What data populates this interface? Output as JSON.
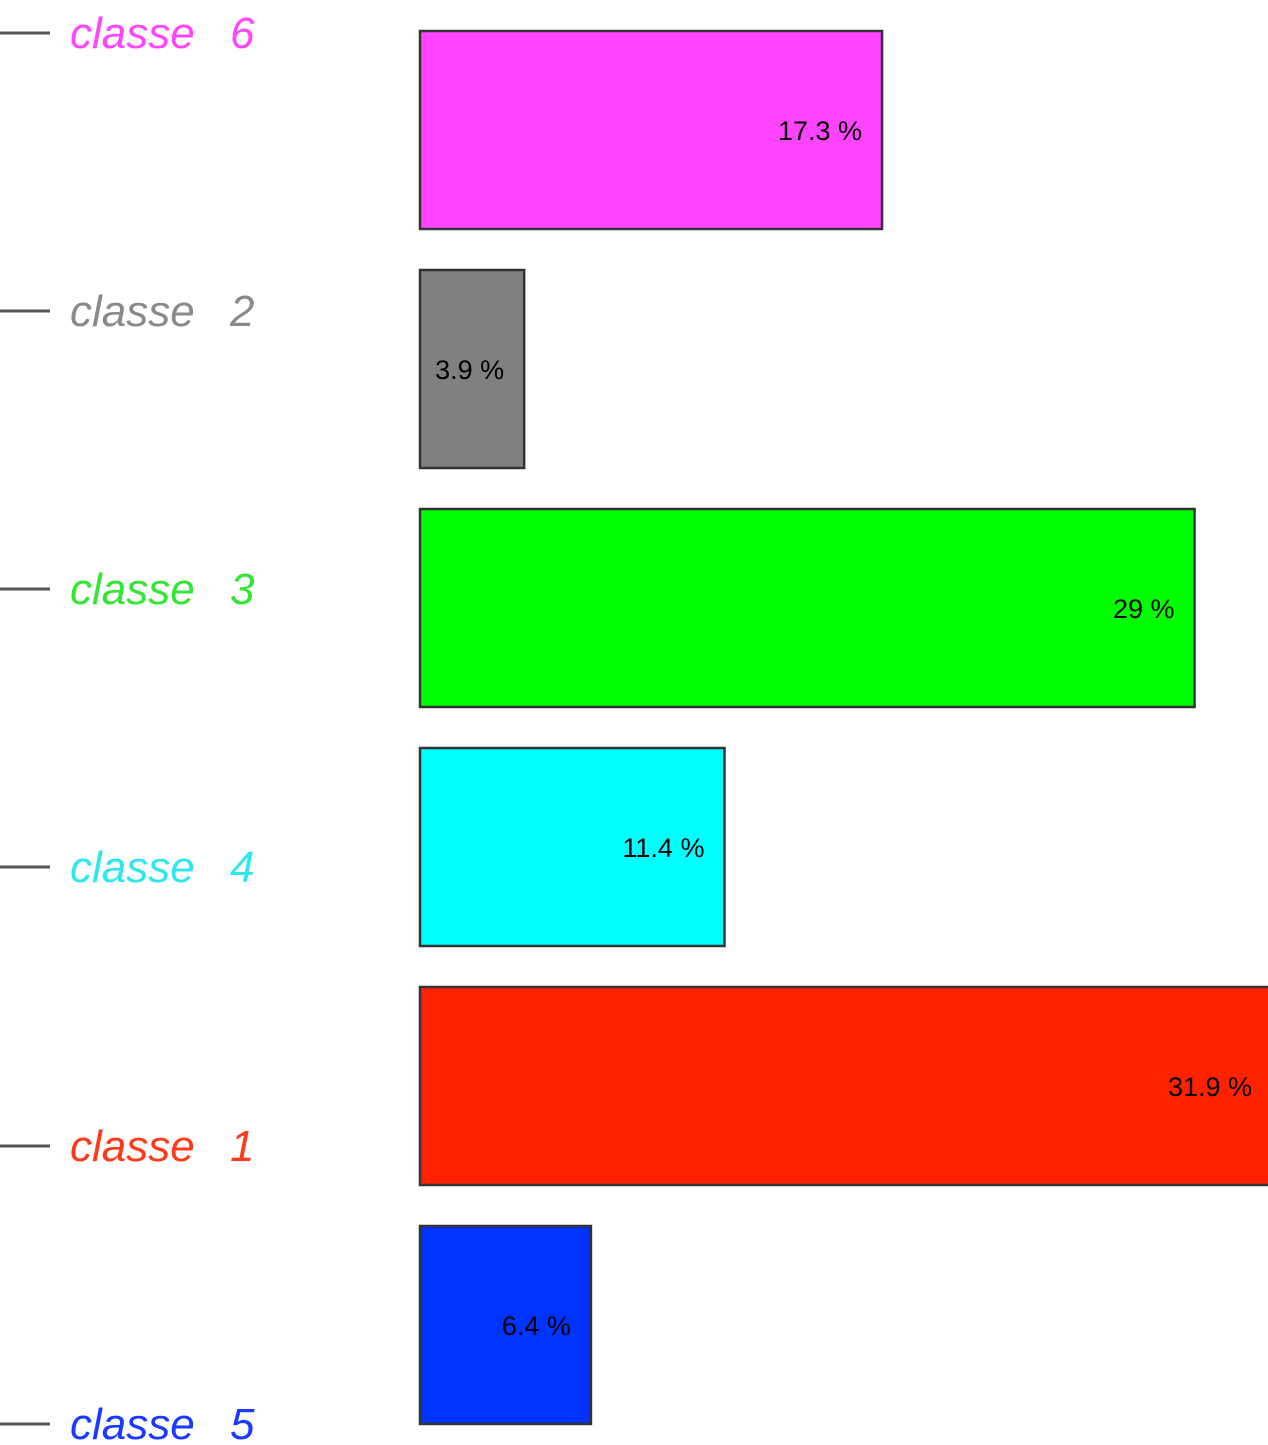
{
  "chart_data": {
    "type": "bar",
    "orientation": "horizontal",
    "title": "",
    "xlabel": "",
    "ylabel": "",
    "grid": false,
    "legend": "none",
    "unit": "%",
    "categories": [
      "classe 6",
      "classe 2",
      "classe 3",
      "classe 4",
      "classe 1",
      "classe 5"
    ],
    "values": [
      17.3,
      3.9,
      29,
      11.4,
      31.9,
      6.4
    ],
    "value_labels": [
      "17.3 %",
      "3.9 %",
      "29 %",
      "11.4 %",
      "31.9 %",
      "6.4 %"
    ],
    "class_labels": [
      {
        "word": "classe",
        "number": "6",
        "color": "#ff45ff"
      },
      {
        "word": "classe",
        "number": "2",
        "color": "#8a8a8a"
      },
      {
        "word": "classe",
        "number": "3",
        "color": "#33e633"
      },
      {
        "word": "classe",
        "number": "4",
        "color": "#2ee8ee"
      },
      {
        "word": "classe",
        "number": "1",
        "color": "#ff3a1a"
      },
      {
        "word": "classe",
        "number": "5",
        "color": "#1a3aff"
      }
    ],
    "bar_colors": [
      "#ff44ff",
      "#808080",
      "#00ff00",
      "#00ffff",
      "#ff2200",
      "#0033ff"
    ],
    "xlim": [
      0,
      31.9
    ]
  }
}
